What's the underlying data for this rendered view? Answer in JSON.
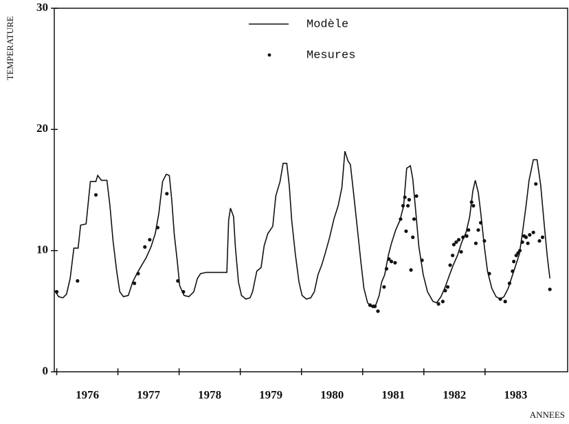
{
  "chart_data": {
    "type": "line",
    "y_label": "TEMPERATURE",
    "x_label": "ANNEES",
    "xlim": [
      1975.96,
      1984.35
    ],
    "ylim": [
      0,
      30
    ],
    "yticks": [
      0,
      10,
      20,
      30
    ],
    "xticks": [
      {
        "value": 1976.5,
        "label": "1976"
      },
      {
        "value": 1977.5,
        "label": "1977"
      },
      {
        "value": 1978.5,
        "label": "1978"
      },
      {
        "value": 1979.5,
        "label": "1979"
      },
      {
        "value": 1980.5,
        "label": "1980"
      },
      {
        "value": 1981.5,
        "label": "1981"
      },
      {
        "value": 1982.5,
        "label": "1982"
      },
      {
        "value": 1983.5,
        "label": "1983"
      }
    ],
    "series": [
      {
        "name": "Modèle",
        "type": "line",
        "color": "#111111",
        "x": [
          1975.97,
          1976.03,
          1976.1,
          1976.16,
          1976.22,
          1976.28,
          1976.35,
          1976.39,
          1976.48,
          1976.55,
          1976.64,
          1976.67,
          1976.73,
          1976.82,
          1976.87,
          1976.92,
          1976.98,
          1977.03,
          1977.09,
          1977.17,
          1977.24,
          1977.31,
          1977.39,
          1977.46,
          1977.54,
          1977.61,
          1977.67,
          1977.73,
          1977.79,
          1977.84,
          1977.88,
          1977.92,
          1977.97,
          1978.01,
          1978.08,
          1978.16,
          1978.24,
          1978.3,
          1978.35,
          1978.44,
          1978.66,
          1978.78,
          1978.81,
          1978.84,
          1978.89,
          1978.92,
          1978.97,
          1979.02,
          1979.09,
          1979.16,
          1979.2,
          1979.27,
          1979.34,
          1979.39,
          1979.45,
          1979.53,
          1979.58,
          1979.65,
          1979.7,
          1979.76,
          1979.8,
          1979.84,
          1979.9,
          1979.96,
          1980.01,
          1980.08,
          1980.15,
          1980.21,
          1980.27,
          1980.33,
          1980.39,
          1980.46,
          1980.53,
          1980.6,
          1980.66,
          1980.71,
          1980.76,
          1980.8,
          1980.85,
          1980.91,
          1980.97,
          1981.02,
          1981.08,
          1981.13,
          1981.2,
          1981.27,
          1981.31,
          1981.36,
          1981.42,
          1981.47,
          1981.54,
          1981.61,
          1981.67,
          1981.72,
          1981.78,
          1981.82,
          1981.87,
          1981.92,
          1981.99,
          1982.06,
          1982.15,
          1982.21,
          1982.28,
          1982.35,
          1982.42,
          1982.48,
          1982.55,
          1982.62,
          1982.69,
          1982.75,
          1982.8,
          1982.84,
          1982.89,
          1982.93,
          1982.99,
          1983.04,
          1983.11,
          1983.18,
          1983.25,
          1983.31,
          1983.38,
          1983.45,
          1983.49,
          1983.56,
          1983.61,
          1983.67,
          1983.72,
          1983.79,
          1983.85,
          1983.91,
          1983.97,
          1984.02,
          1984.06
        ],
        "values": [
          6.7,
          6.2,
          6.1,
          6.4,
          7.7,
          10.2,
          10.2,
          12.1,
          12.2,
          15.7,
          15.7,
          16.2,
          15.8,
          15.8,
          13.7,
          10.8,
          8.3,
          6.6,
          6.2,
          6.3,
          7.4,
          8.1,
          8.8,
          9.4,
          10.3,
          11.4,
          13.1,
          15.7,
          16.3,
          16.2,
          14.2,
          11.4,
          9.1,
          7.1,
          6.3,
          6.2,
          6.6,
          7.7,
          8.1,
          8.2,
          8.2,
          8.2,
          12.5,
          13.5,
          12.8,
          10.3,
          7.4,
          6.3,
          6.0,
          6.1,
          6.6,
          8.3,
          8.6,
          10.4,
          11.4,
          12.0,
          14.5,
          15.7,
          17.2,
          17.2,
          15.4,
          12.5,
          9.7,
          7.4,
          6.3,
          6.0,
          6.1,
          6.6,
          8.0,
          8.8,
          9.8,
          11.1,
          12.6,
          13.7,
          15.2,
          18.2,
          17.4,
          17.1,
          14.8,
          12.0,
          9.1,
          6.9,
          5.7,
          5.4,
          5.3,
          6.3,
          7.4,
          8.0,
          9.6,
          10.6,
          11.7,
          12.5,
          13.7,
          16.8,
          17.0,
          15.9,
          13.1,
          10.3,
          8.0,
          6.6,
          5.8,
          5.7,
          6.2,
          7.0,
          8.0,
          8.8,
          9.6,
          10.7,
          11.5,
          12.8,
          14.9,
          15.8,
          14.8,
          13.1,
          10.3,
          8.3,
          6.9,
          6.2,
          6.0,
          6.2,
          6.9,
          8.0,
          8.6,
          9.7,
          11.4,
          13.7,
          15.8,
          17.5,
          17.5,
          15.4,
          12.0,
          9.4,
          7.7
        ]
      },
      {
        "name": "Mesures",
        "type": "scatter",
        "color": "#111111",
        "x": [
          1976.0,
          1976.34,
          1976.64,
          1977.27,
          1977.33,
          1977.44,
          1977.52,
          1977.65,
          1977.8,
          1977.98,
          1978.07,
          1981.12,
          1981.17,
          1981.2,
          1981.25,
          1981.35,
          1981.39,
          1981.43,
          1981.47,
          1981.53,
          1981.62,
          1981.66,
          1981.69,
          1981.71,
          1981.74,
          1981.76,
          1981.79,
          1981.82,
          1981.84,
          1981.88,
          1981.97,
          1982.24,
          1982.31,
          1982.35,
          1982.39,
          1982.43,
          1982.47,
          1982.49,
          1982.53,
          1982.57,
          1982.61,
          1982.64,
          1982.7,
          1982.73,
          1982.78,
          1982.81,
          1982.85,
          1982.89,
          1982.93,
          1982.99,
          1983.07,
          1983.25,
          1983.33,
          1983.4,
          1983.45,
          1983.47,
          1983.51,
          1983.54,
          1983.57,
          1983.61,
          1983.64,
          1983.67,
          1983.7,
          1983.73,
          1983.79,
          1983.83,
          1983.89,
          1983.94,
          1984.06
        ],
        "values": [
          6.6,
          7.5,
          14.6,
          7.3,
          8.1,
          10.3,
          10.9,
          11.9,
          14.7,
          7.5,
          6.6,
          5.5,
          5.4,
          5.4,
          5.0,
          7.0,
          8.5,
          9.3,
          9.1,
          9.0,
          12.6,
          13.7,
          14.4,
          11.6,
          13.7,
          14.2,
          8.4,
          11.1,
          12.6,
          14.5,
          9.2,
          5.6,
          5.8,
          6.7,
          7.0,
          8.8,
          9.6,
          10.5,
          10.7,
          10.9,
          9.9,
          11.1,
          11.2,
          11.7,
          14.0,
          13.7,
          10.6,
          11.7,
          12.3,
          10.8,
          8.1,
          6.0,
          5.8,
          7.3,
          8.3,
          9.1,
          9.6,
          9.8,
          10.0,
          10.7,
          11.2,
          11.1,
          10.6,
          11.3,
          11.5,
          15.5,
          10.8,
          11.1,
          6.8
        ]
      }
    ]
  }
}
